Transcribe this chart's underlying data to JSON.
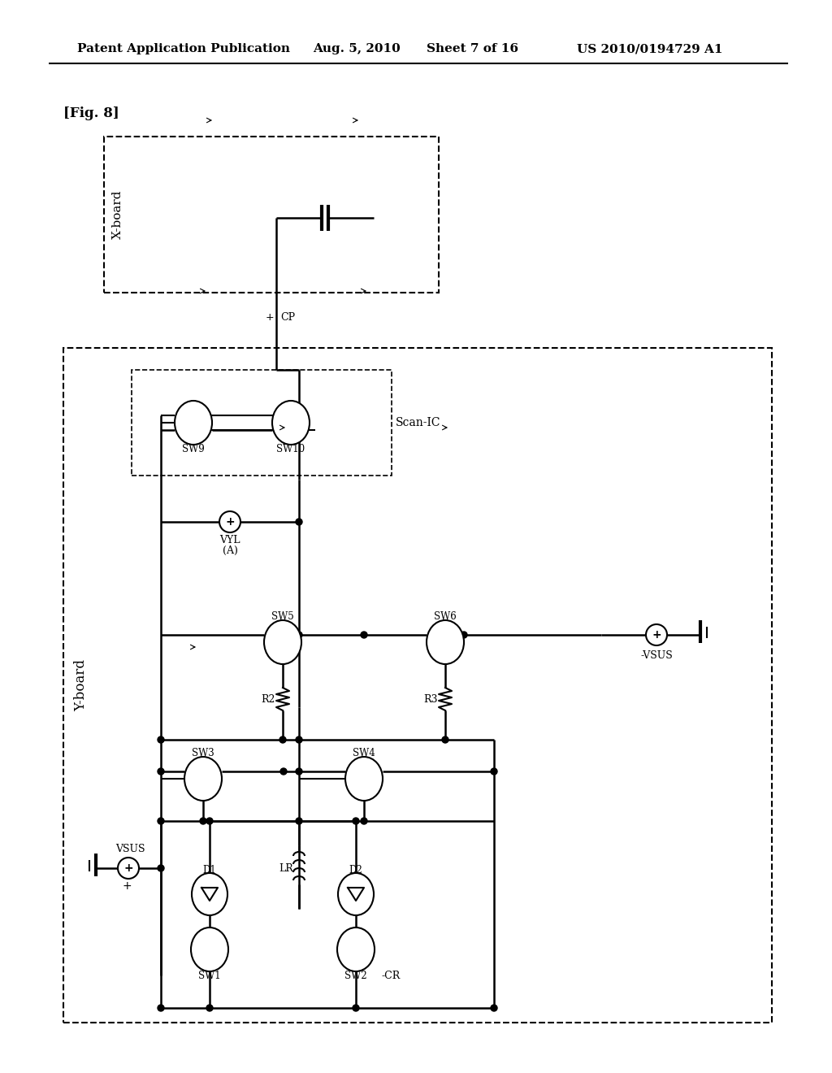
{
  "title": "Patent Application Publication",
  "title_date": "Aug. 5, 2010",
  "title_sheet": "Sheet 7 of 16",
  "title_patent": "US 2010/0194729 A1",
  "fig_label": "[Fig. 8]",
  "background_color": "#ffffff"
}
